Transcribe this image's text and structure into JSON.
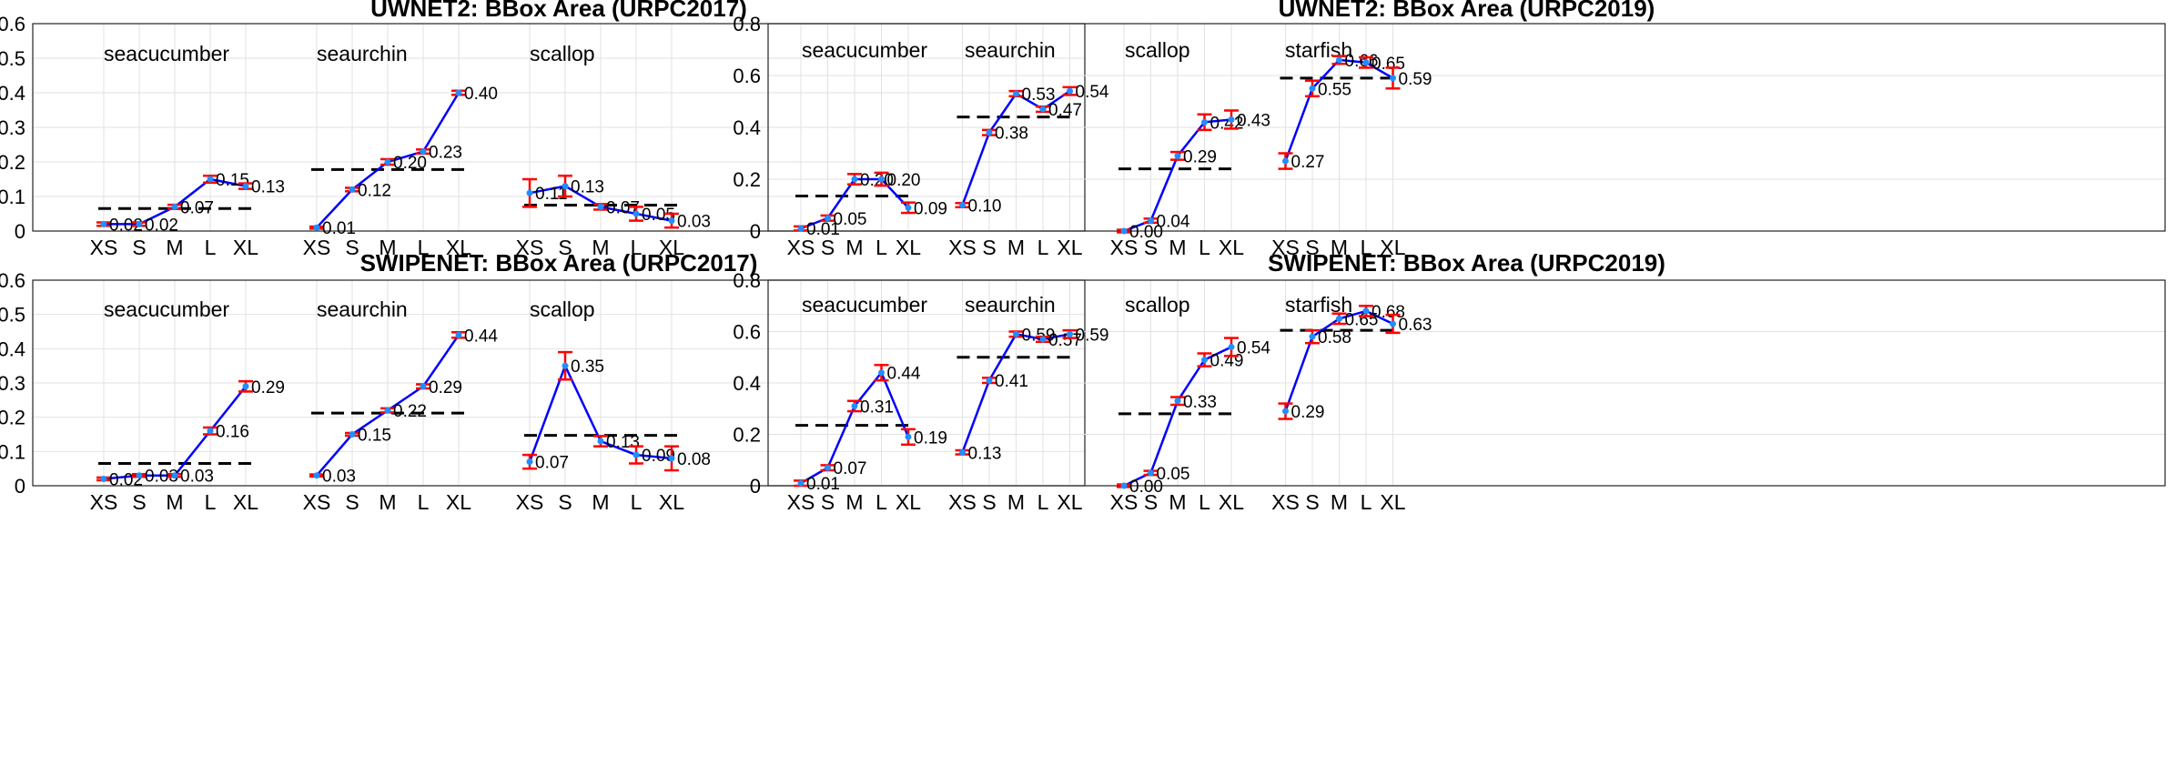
{
  "chart_data": [
    {
      "type": "line",
      "title": "UWNET2: BBox Area (URPC2017)",
      "x_categories": [
        "XS",
        "S",
        "M",
        "L",
        "XL"
      ],
      "ylim": [
        0,
        0.6
      ],
      "yticks": [
        "0",
        "0.1",
        "0.2",
        "0.3",
        "0.4",
        "0.5",
        "0.6"
      ],
      "groups": [
        {
          "name": "seacucumber",
          "values": [
            0.02,
            0.02,
            0.07,
            0.15,
            0.13
          ],
          "labels": [
            "0.02",
            "0.02",
            "0.07",
            "0.15",
            "0.13"
          ],
          "errors": [
            0.005,
            0.005,
            0.006,
            0.01,
            0.008
          ],
          "mean": 0.065
        },
        {
          "name": "seaurchin",
          "values": [
            0.01,
            0.12,
            0.2,
            0.23,
            0.4
          ],
          "labels": [
            "0.01",
            "0.12",
            "0.20",
            "0.23",
            "0.40"
          ],
          "errors": [
            0.003,
            0.005,
            0.008,
            0.006,
            0.006
          ],
          "mean": 0.178
        },
        {
          "name": "scallop",
          "values": [
            0.11,
            0.13,
            0.07,
            0.05,
            0.03
          ],
          "labels": [
            "0.11",
            "0.13",
            "0.07",
            "0.05",
            "0.03"
          ],
          "errors": [
            0.04,
            0.03,
            0.008,
            0.02,
            0.02
          ],
          "mean": 0.075
        }
      ]
    },
    {
      "type": "line",
      "title": "UWNET2: BBox Area (URPC2019)",
      "x_categories": [
        "XS",
        "S",
        "M",
        "L",
        "XL"
      ],
      "ylim": [
        0,
        0.8
      ],
      "yticks": [
        "0",
        "0.2",
        "0.4",
        "0.6",
        "0.8"
      ],
      "groups": [
        {
          "name": "seacucumber",
          "values": [
            0.01,
            0.05,
            0.2,
            0.2,
            0.09
          ],
          "labels": [
            "0.01",
            "0.05",
            "0.20",
            "0.20",
            "0.09"
          ],
          "errors": [
            0.008,
            0.01,
            0.02,
            0.025,
            0.02
          ],
          "mean": 0.135
        },
        {
          "name": "seaurchin",
          "values": [
            0.1,
            0.38,
            0.53,
            0.47,
            0.54
          ],
          "labels": [
            "0.10",
            "0.38",
            "0.53",
            "0.47",
            "0.54"
          ],
          "errors": [
            0.008,
            0.01,
            0.01,
            0.01,
            0.015
          ],
          "mean": 0.44
        },
        {
          "name": "scallop",
          "values": [
            0.0,
            0.04,
            0.29,
            0.42,
            0.43
          ],
          "labels": [
            "0.00",
            "0.04",
            "0.29",
            "0.42",
            "0.43"
          ],
          "errors": [
            0.005,
            0.008,
            0.015,
            0.03,
            0.035
          ],
          "mean": 0.24
        },
        {
          "name": "starfish",
          "values": [
            0.27,
            0.55,
            0.66,
            0.65,
            0.59
          ],
          "labels": [
            "0.27",
            "0.55",
            "0.66",
            "0.65",
            "0.59"
          ],
          "errors": [
            0.03,
            0.03,
            0.015,
            0.02,
            0.04
          ],
          "mean": 0.59
        }
      ]
    },
    {
      "type": "line",
      "title": "SWIPENET: BBox Area (URPC2017)",
      "x_categories": [
        "XS",
        "S",
        "M",
        "L",
        "XL"
      ],
      "ylim": [
        0,
        0.6
      ],
      "yticks": [
        "0",
        "0.1",
        "0.2",
        "0.3",
        "0.4",
        "0.5",
        "0.6"
      ],
      "groups": [
        {
          "name": "seacucumber",
          "values": [
            0.02,
            0.03,
            0.03,
            0.16,
            0.29
          ],
          "labels": [
            "0.02",
            "0.03",
            "0.03",
            "0.16",
            "0.29"
          ],
          "errors": [
            0.004,
            0.004,
            0.004,
            0.01,
            0.015
          ],
          "mean": 0.065
        },
        {
          "name": "seaurchin",
          "values": [
            0.03,
            0.15,
            0.22,
            0.29,
            0.44
          ],
          "labels": [
            "0.03",
            "0.15",
            "0.22",
            "0.29",
            "0.44"
          ],
          "errors": [
            0.003,
            0.004,
            0.006,
            0.006,
            0.008
          ],
          "mean": 0.212
        },
        {
          "name": "scallop",
          "values": [
            0.07,
            0.35,
            0.13,
            0.09,
            0.08
          ],
          "labels": [
            "0.07",
            "0.35",
            "0.13",
            "0.09",
            "0.08"
          ],
          "errors": [
            0.02,
            0.04,
            0.015,
            0.025,
            0.035
          ],
          "mean": 0.147
        }
      ]
    },
    {
      "type": "line",
      "title": "SWIPENET: BBox Area (URPC2019)",
      "x_categories": [
        "XS",
        "S",
        "M",
        "L",
        "XL"
      ],
      "ylim": [
        0,
        0.8
      ],
      "yticks": [
        "0",
        "0.2",
        "0.4",
        "0.6",
        "0.8"
      ],
      "groups": [
        {
          "name": "seacucumber",
          "values": [
            0.01,
            0.07,
            0.31,
            0.44,
            0.19
          ],
          "labels": [
            "0.01",
            "0.07",
            "0.31",
            "0.44",
            "0.19"
          ],
          "errors": [
            0.01,
            0.01,
            0.02,
            0.03,
            0.03
          ],
          "mean": 0.235
        },
        {
          "name": "seaurchin",
          "values": [
            0.13,
            0.41,
            0.59,
            0.57,
            0.59
          ],
          "labels": [
            "0.13",
            "0.41",
            "0.59",
            "0.57",
            "0.59"
          ],
          "errors": [
            0.008,
            0.01,
            0.01,
            0.01,
            0.015
          ],
          "mean": 0.5
        },
        {
          "name": "scallop",
          "values": [
            0.0,
            0.05,
            0.33,
            0.49,
            0.54
          ],
          "labels": [
            "0.00",
            "0.05",
            "0.33",
            "0.49",
            "0.54"
          ],
          "errors": [
            0.005,
            0.008,
            0.015,
            0.025,
            0.035
          ],
          "mean": 0.28
        },
        {
          "name": "starfish",
          "values": [
            0.29,
            0.58,
            0.65,
            0.68,
            0.63
          ],
          "labels": [
            "0.29",
            "0.58",
            "0.65",
            "0.68",
            "0.63"
          ],
          "errors": [
            0.03,
            0.025,
            0.02,
            0.02,
            0.035
          ],
          "mean": 0.605
        }
      ]
    }
  ],
  "colors": {
    "line": "#0000ff",
    "error_bar": "#ff0000",
    "mean_line": "#000000",
    "marker": "#1f8fff"
  }
}
